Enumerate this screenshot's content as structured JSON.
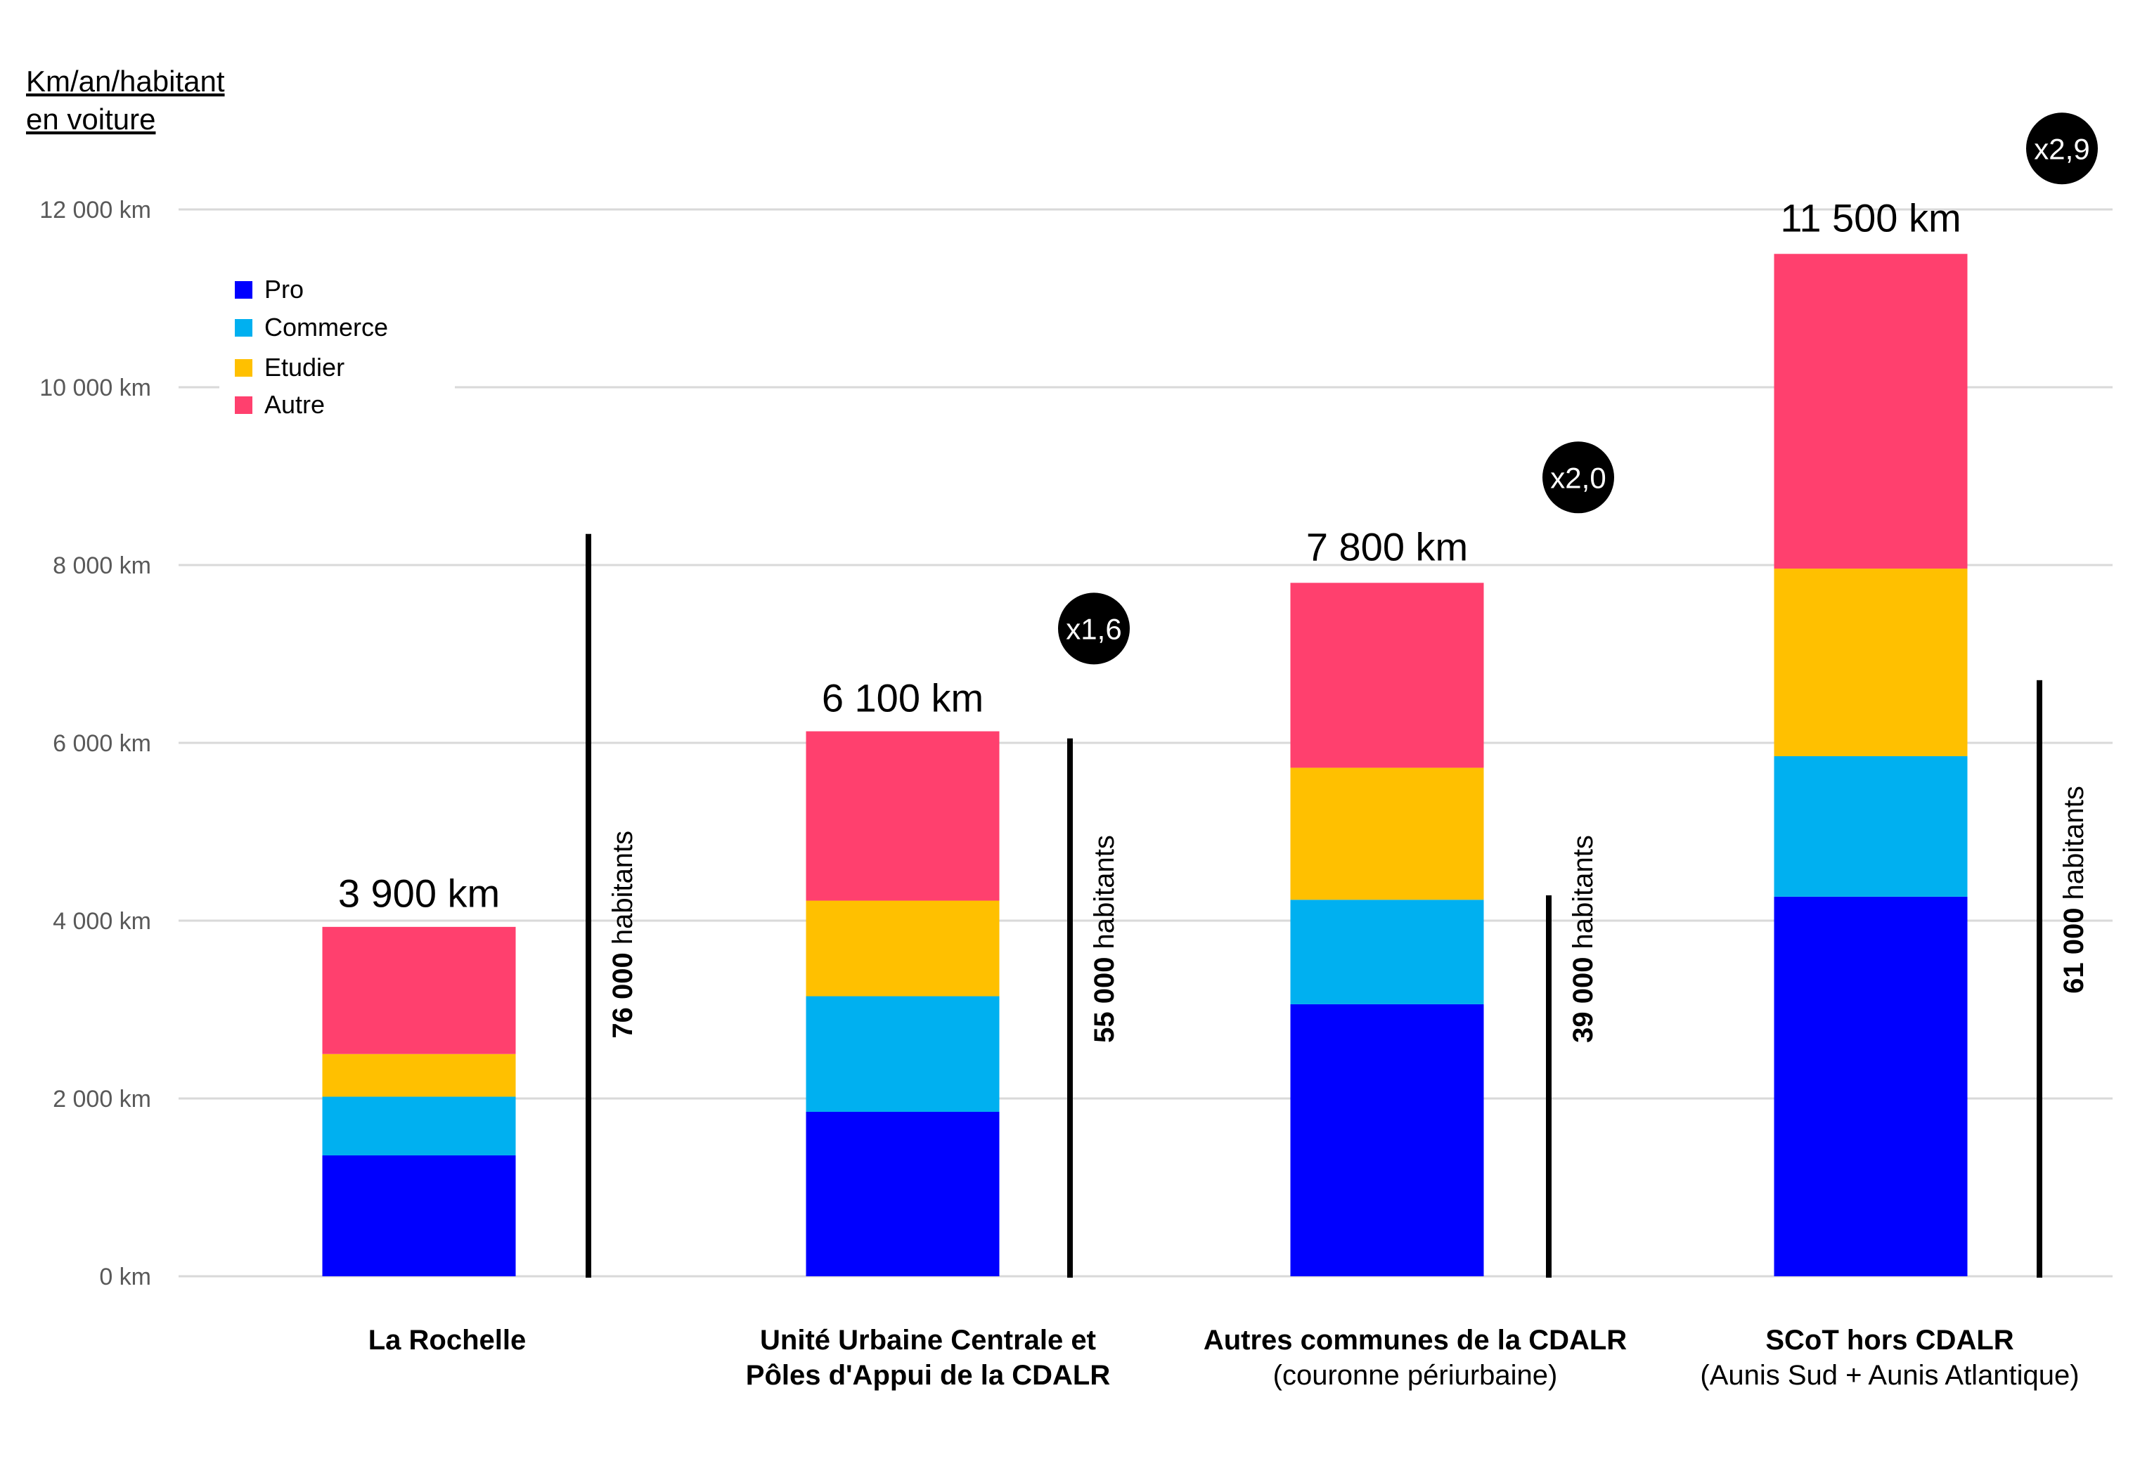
{
  "chart_data": {
    "type": "bar",
    "stacked": true,
    "title": "Km/an/habitant en voiture",
    "ylabel_lines": [
      "Km/an/habitant",
      "en voiture"
    ],
    "xlabel": "",
    "ylim": [
      0,
      12000
    ],
    "yticks": [
      {
        "value": 0,
        "label": "0 km"
      },
      {
        "value": 2000,
        "label": "2 000 km"
      },
      {
        "value": 4000,
        "label": "4 000 km"
      },
      {
        "value": 6000,
        "label": "6 000 km"
      },
      {
        "value": 8000,
        "label": "8 000 km"
      },
      {
        "value": 10000,
        "label": "10 000 km"
      },
      {
        "value": 12000,
        "label": "12 000 km"
      }
    ],
    "grid": true,
    "legend_position": "top-left",
    "categories": [
      {
        "main": "La Rochelle",
        "sub": ""
      },
      {
        "main": "Unité Urbaine Centrale et",
        "sub_bold": "Pôles d'Appui de la CDALR",
        "sub": ""
      },
      {
        "main": "Autres communes de la CDALR",
        "sub": "(couronne périurbaine)"
      },
      {
        "main": "SCoT hors CDALR",
        "sub": "(Aunis Sud + Aunis Atlantique)"
      }
    ],
    "series": [
      {
        "name": "Pro",
        "color": "#0000ff",
        "values": [
          1360,
          1850,
          3060,
          4270
        ]
      },
      {
        "name": "Commerce",
        "color": "#00b0f0",
        "values": [
          660,
          1300,
          1175,
          1580
        ]
      },
      {
        "name": "Etudier",
        "color": "#ffc000",
        "values": [
          480,
          1075,
          1485,
          2110
        ]
      },
      {
        "name": "Autre",
        "color": "#ff406e",
        "values": [
          1430,
          1905,
          2080,
          3540
        ]
      }
    ],
    "totals": [
      {
        "value": 3900,
        "label": "3 900 km"
      },
      {
        "value": 6100,
        "label": "6 100 km"
      },
      {
        "value": 7800,
        "label": "7 800 km"
      },
      {
        "value": 11500,
        "label": "11 500 km"
      }
    ],
    "multipliers": [
      "",
      "x1,6",
      "x2,0",
      "x2,9"
    ],
    "population": [
      {
        "value": 76000,
        "number": "76 000",
        "unit": " habitants",
        "line_height_km": 8350
      },
      {
        "value": 55000,
        "number": "55 000",
        "unit": " habitants",
        "line_height_km": 6050
      },
      {
        "value": 39000,
        "number": "39 000",
        "unit": " habitants",
        "line_height_km": 4285
      },
      {
        "value": 61000,
        "number": "61 000",
        "unit": " habitants",
        "line_height_km": 6705
      }
    ]
  }
}
